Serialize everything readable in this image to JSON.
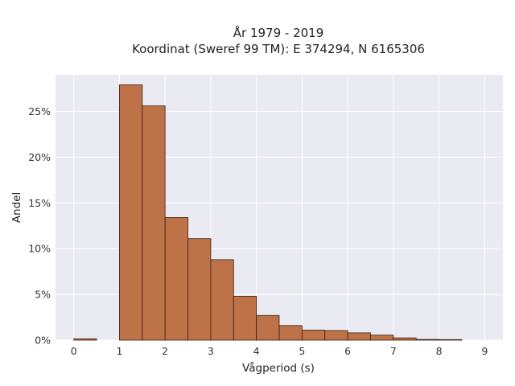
{
  "chart_data": {
    "type": "bar",
    "title_lines": [
      "År 1979 - 2019",
      "Koordinat (Sweref 99 TM): E 374294, N 6165306"
    ],
    "xlabel": "Vågperiod (s)",
    "ylabel": "Andel",
    "xlim": [
      -0.4,
      9.4
    ],
    "ylim": [
      0,
      0.29
    ],
    "x_ticks": [
      0,
      1,
      2,
      3,
      4,
      5,
      6,
      7,
      8,
      9
    ],
    "y_ticks": [
      0,
      0.05,
      0.1,
      0.15,
      0.2,
      0.25
    ],
    "y_tick_labels": [
      "0%",
      "5%",
      "10%",
      "15%",
      "20%",
      "25%"
    ],
    "bin_width": 0.5,
    "bins": [
      0,
      0.5,
      1.0,
      1.5,
      2.0,
      2.5,
      3.0,
      3.5,
      4.0,
      4.5,
      5.0,
      5.5,
      6.0,
      6.5,
      7.0,
      7.5,
      8.0
    ],
    "values": [
      0.0015,
      0,
      0.279,
      0.256,
      0.134,
      0.111,
      0.088,
      0.048,
      0.027,
      0.016,
      0.011,
      0.0105,
      0.008,
      0.0055,
      0.0025,
      0.0008,
      0.0006
    ],
    "grid": true,
    "bar_color": "#b86535",
    "bar_edge_color": "#3f1f10",
    "plot_background": "#eaeaf2"
  }
}
